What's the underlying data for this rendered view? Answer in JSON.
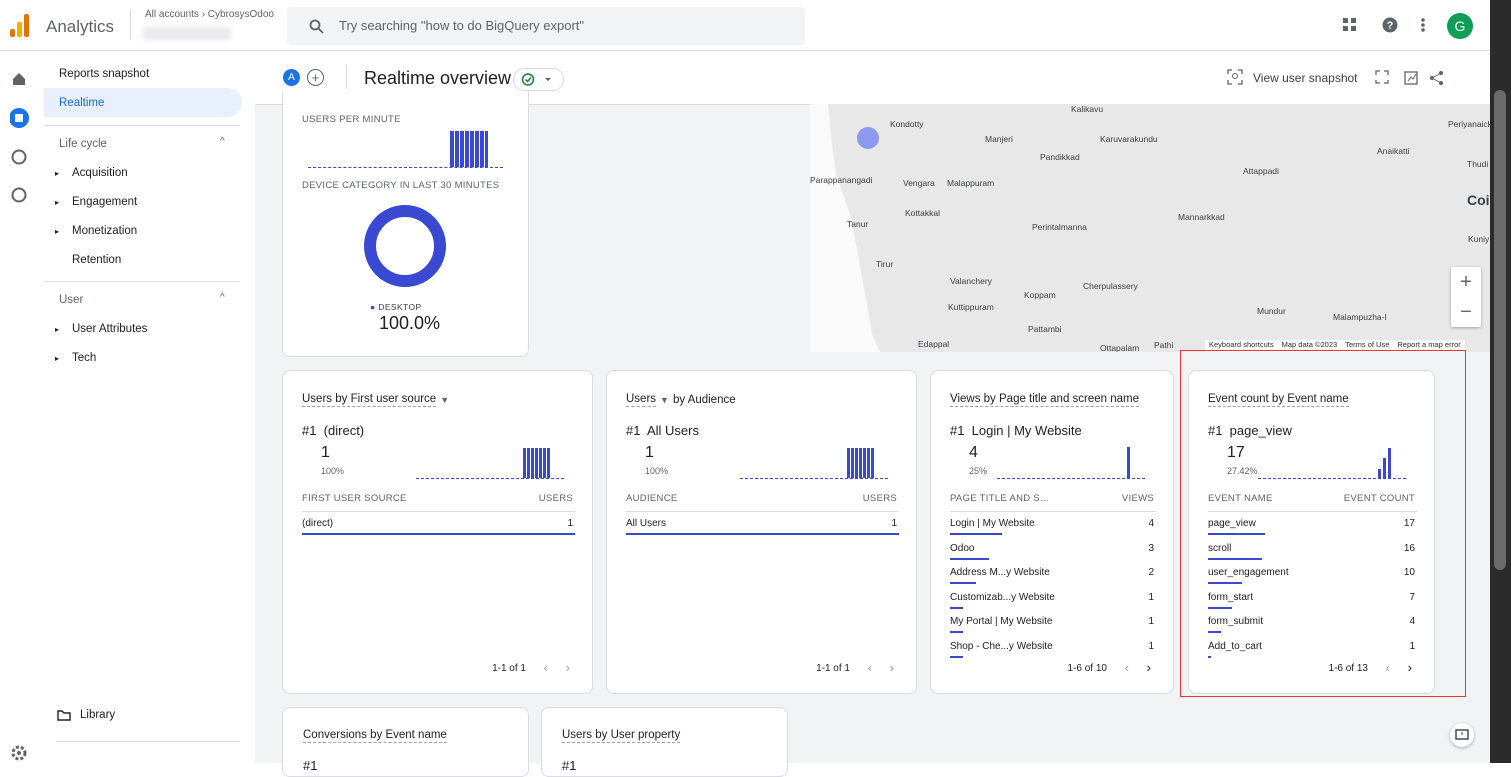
{
  "header": {
    "product": "Analytics",
    "breadcrumb": "All accounts › CybrosysOdoo",
    "search_placeholder": "Try searching \"how to do BigQuery export\"",
    "avatar": "G"
  },
  "sidebar": {
    "items": [
      "Reports snapshot",
      "Realtime"
    ],
    "sections": [
      {
        "title": "Life cycle",
        "items": [
          "Acquisition",
          "Engagement",
          "Monetization",
          "Retention"
        ]
      },
      {
        "title": "User",
        "items": [
          "User Attributes",
          "Tech"
        ]
      }
    ],
    "library": "Library"
  },
  "toolbar": {
    "comparison": "A",
    "title": "Realtime overview",
    "snapshot": "View user snapshot"
  },
  "summary_card": {
    "users_per_minute": "USERS PER MINUTE",
    "device_title": "DEVICE CATEGORY IN LAST 30 MINUTES",
    "device": "DESKTOP",
    "share": {
      "value": 100.0,
      "label": "100.0%"
    }
  },
  "map": {
    "labels": [
      "Kalikavu",
      "Kondotty",
      "Manjeri",
      "Karuvarakundu",
      "Pandikkad",
      "Parappanangadi",
      "Vengara",
      "Malappuram",
      "Attappadi",
      "Anaikatti",
      "Periyanaick",
      "Thudi",
      "Coim",
      "Kottakkal",
      "Tanur",
      "Perintalmanna",
      "Mannarkkad",
      "Kuniy",
      "Tirur",
      "Valanchery",
      "Cherpulassery",
      "Koppam",
      "Kuttippuram",
      "Pattambi",
      "Mundur",
      "Malampuzha-I",
      "Edappal",
      "Ottapalam",
      "Pathi"
    ],
    "footer": [
      "Keyboard shortcuts",
      "Map data ©2023",
      "Terms of Use",
      "Report a map error"
    ]
  },
  "cards": [
    {
      "title": "Users by First user source",
      "top": "#1  (direct)",
      "top_value": 1,
      "top_pct": {
        "value": 100,
        "label": "100%"
      },
      "columns": [
        "FIRST USER SOURCE",
        "USERS"
      ],
      "rows": [
        [
          "(direct)",
          1
        ]
      ],
      "pagination": "1-1 of 1"
    },
    {
      "title": "Users",
      "title_suffix": "by Audience",
      "top": "#1  All Users",
      "top_value": 1,
      "top_pct": {
        "value": 100,
        "label": "100%"
      },
      "columns": [
        "AUDIENCE",
        "USERS"
      ],
      "rows": [
        [
          "All Users",
          1
        ]
      ],
      "pagination": "1-1 of 1"
    },
    {
      "title": "Views by Page title and screen name",
      "top": "#1  Login | My Website",
      "top_value": 4,
      "top_pct": {
        "value": 25,
        "label": "25%"
      },
      "columns": [
        "PAGE TITLE AND S...",
        "VIEWS"
      ],
      "rows": [
        [
          "Login | My Website",
          4
        ],
        [
          "Odoo",
          3
        ],
        [
          "Address M...y Website",
          2
        ],
        [
          "Customizab...y Website",
          1
        ],
        [
          "My Portal | My Website",
          1
        ],
        [
          "Shop - Che...y Website",
          1
        ]
      ],
      "pagination": "1-6 of 10"
    },
    {
      "title": "Event count by Event name",
      "top": "#1  page_view",
      "top_value": 17,
      "top_pct": {
        "value": 27.42,
        "label": "27.42%"
      },
      "columns": [
        "EVENT NAME",
        "EVENT COUNT"
      ],
      "rows": [
        [
          "page_view",
          17
        ],
        [
          "scroll",
          16
        ],
        [
          "user_engagement",
          10
        ],
        [
          "form_start",
          7
        ],
        [
          "form_submit",
          4
        ],
        [
          "Add_to_cart",
          1
        ]
      ],
      "pagination": "1-6 of 13"
    }
  ],
  "bottom_cards": [
    {
      "title": "Conversions by Event name",
      "top": "#1"
    },
    {
      "title": "Users by User property",
      "top": "#1"
    }
  ]
}
